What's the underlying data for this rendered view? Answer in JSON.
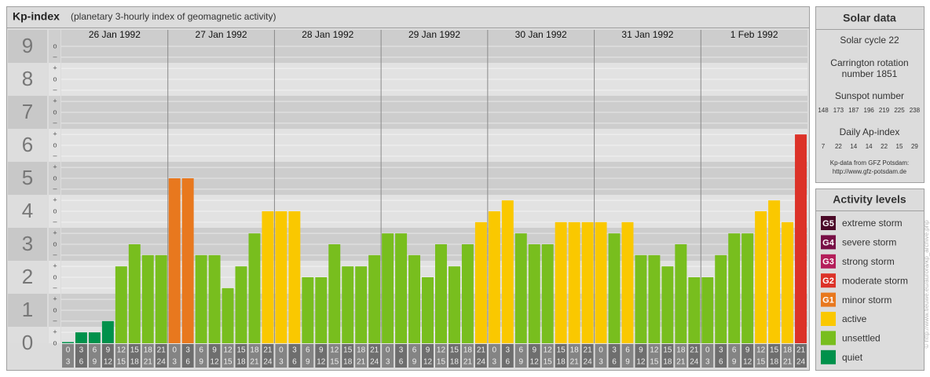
{
  "title": "Kp-index",
  "subtitle": "(planetary 3-hourly index of geomagnetic activity)",
  "chart_data": {
    "type": "bar",
    "days": [
      "26 Jan 1992",
      "27 Jan 1992",
      "28 Jan 1992",
      "29 Jan 1992",
      "30 Jan 1992",
      "31 Jan 1992",
      "1 Feb 1992"
    ],
    "hours": [
      [
        0,
        3
      ],
      [
        3,
        6
      ],
      [
        6,
        9
      ],
      [
        9,
        12
      ],
      [
        12,
        15
      ],
      [
        15,
        18
      ],
      [
        18,
        21
      ],
      [
        21,
        24
      ]
    ],
    "ylim": [
      0,
      9.5
    ],
    "yticks": [
      0,
      1,
      2,
      3,
      4,
      5,
      6,
      7,
      8,
      9
    ],
    "yminor_ticks": [
      {
        "value": 0,
        "label": "o"
      },
      {
        "value": 0.33,
        "label": "+"
      },
      {
        "value": 0.67,
        "label": "–"
      },
      {
        "value": 1,
        "label": "o"
      },
      {
        "value": 1.33,
        "label": "+"
      },
      {
        "value": 1.67,
        "label": "–"
      },
      {
        "value": 2,
        "label": "o"
      },
      {
        "value": 2.33,
        "label": "+"
      },
      {
        "value": 2.67,
        "label": "–"
      },
      {
        "value": 3,
        "label": "o"
      },
      {
        "value": 3.33,
        "label": "+"
      },
      {
        "value": 3.67,
        "label": "–"
      },
      {
        "value": 4,
        "label": "o"
      },
      {
        "value": 4.33,
        "label": "+"
      },
      {
        "value": 4.67,
        "label": "–"
      },
      {
        "value": 5,
        "label": "o"
      },
      {
        "value": 5.33,
        "label": "+"
      },
      {
        "value": 5.67,
        "label": "–"
      },
      {
        "value": 6,
        "label": "o"
      },
      {
        "value": 6.33,
        "label": "+"
      },
      {
        "value": 6.67,
        "label": "–"
      },
      {
        "value": 7,
        "label": "o"
      },
      {
        "value": 7.33,
        "label": "+"
      },
      {
        "value": 7.67,
        "label": "–"
      },
      {
        "value": 8,
        "label": "o"
      },
      {
        "value": 8.33,
        "label": "+"
      },
      {
        "value": 8.67,
        "label": "–"
      },
      {
        "value": 9,
        "label": "o"
      }
    ],
    "values": [
      0,
      0.33,
      0.33,
      0.67,
      2.33,
      3,
      2.67,
      2.67,
      5,
      5,
      2.67,
      2.67,
      1.67,
      2.33,
      3.33,
      4,
      4,
      4,
      2,
      2,
      3,
      2.33,
      2.33,
      2.67,
      3.33,
      3.33,
      2.67,
      2,
      3,
      2.33,
      3,
      3.67,
      4,
      4.33,
      3.33,
      3,
      3,
      3.67,
      3.67,
      3.67,
      3.67,
      3.33,
      3.67,
      2.67,
      2.67,
      2.33,
      3,
      2,
      2,
      2.67,
      3.33,
      3.33,
      4,
      4.33,
      3.67,
      6.33
    ],
    "colors": [
      "#00914b",
      "#00914b",
      "#00914b",
      "#00914b",
      "#78be1e",
      "#78be1e",
      "#78be1e",
      "#78be1e",
      "#e8781e",
      "#e8781e",
      "#78be1e",
      "#78be1e",
      "#78be1e",
      "#78be1e",
      "#78be1e",
      "#fac800",
      "#fac800",
      "#fac800",
      "#78be1e",
      "#78be1e",
      "#78be1e",
      "#78be1e",
      "#78be1e",
      "#78be1e",
      "#78be1e",
      "#78be1e",
      "#78be1e",
      "#78be1e",
      "#78be1e",
      "#78be1e",
      "#78be1e",
      "#fac800",
      "#fac800",
      "#fac800",
      "#78be1e",
      "#78be1e",
      "#78be1e",
      "#fac800",
      "#fac800",
      "#fac800",
      "#fac800",
      "#78be1e",
      "#fac800",
      "#78be1e",
      "#78be1e",
      "#78be1e",
      "#78be1e",
      "#78be1e",
      "#78be1e",
      "#78be1e",
      "#78be1e",
      "#78be1e",
      "#fac800",
      "#fac800",
      "#fac800",
      "#dc3228"
    ],
    "grid": true
  },
  "solar_data": {
    "title": "Solar data",
    "solar_cycle": "Solar cycle 22",
    "carrington": [
      "Carrington rotation",
      "number 1851"
    ],
    "sunspot_title": "Sunspot number",
    "sunspot_numbers": [
      148,
      173,
      187,
      196,
      219,
      225,
      238
    ],
    "ap_title": "Daily Ap-index",
    "ap_values": [
      7,
      22,
      14,
      14,
      22,
      15,
      29
    ],
    "source": [
      "Kp-data from GFZ Potsdam:",
      "http://www.gfz-potsdam.de"
    ]
  },
  "activity_levels": {
    "title": "Activity levels",
    "items": [
      {
        "badge": "G5",
        "label": "extreme storm",
        "color": "#4b0a28"
      },
      {
        "badge": "G4",
        "label": "severe storm",
        "color": "#780f46"
      },
      {
        "badge": "G3",
        "label": "strong storm",
        "color": "#b41e5a"
      },
      {
        "badge": "G2",
        "label": "moderate storm",
        "color": "#dc3228"
      },
      {
        "badge": "G1",
        "label": "minor storm",
        "color": "#e8781e"
      },
      {
        "label": "active",
        "color": "#fac800"
      },
      {
        "label": "unsettled",
        "color": "#78be1e"
      },
      {
        "label": "quiet",
        "color": "#00914b"
      }
    ]
  },
  "credit": "© http://www.tieuwe.eu/aurora/kp_archive.php"
}
